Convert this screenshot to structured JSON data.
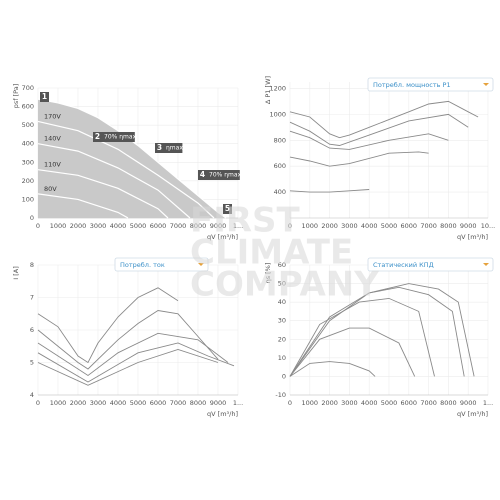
{
  "chart_data": [
    {
      "type": "area-line",
      "ylabel": "psf [Pa]",
      "xlabel": "qV [m³/h]",
      "xlim": [
        0,
        10000
      ],
      "xticks": [
        0,
        1000,
        2000,
        3000,
        4000,
        5000,
        6000,
        7000,
        8000,
        9000,
        {
          "value": 10000,
          "label": "1..."
        }
      ],
      "ylim": [
        0,
        700
      ],
      "yticks": [
        0,
        100,
        200,
        300,
        400,
        500,
        600,
        700
      ],
      "grid": true,
      "color": "#c9c9c9",
      "line_color": "#ffffff",
      "series": [
        {
          "x": [
            0,
            1000,
            2000,
            3000,
            4000,
            5000,
            6000,
            7000,
            8000,
            9000,
            9400
          ],
          "values": [
            640,
            620,
            590,
            540,
            470,
            390,
            300,
            210,
            120,
            30,
            0
          ]
        },
        {
          "name": "170V",
          "x": [
            0,
            2000,
            4000,
            6000,
            8000,
            8800
          ],
          "values": [
            520,
            470,
            370,
            230,
            80,
            0
          ]
        },
        {
          "name": "140V",
          "x": [
            0,
            2000,
            4000,
            6000,
            7600
          ],
          "values": [
            400,
            360,
            270,
            150,
            0
          ]
        },
        {
          "name": "110V",
          "x": [
            0,
            2000,
            4000,
            6000,
            6500
          ],
          "values": [
            260,
            230,
            160,
            50,
            0
          ]
        },
        {
          "name": "80V",
          "x": [
            0,
            2000,
            4000,
            4500
          ],
          "values": [
            130,
            100,
            30,
            0
          ]
        }
      ],
      "annotations": [
        {
          "marker": "1"
        },
        {
          "marker": "2",
          "text": "70% ηmax"
        },
        {
          "marker": "3",
          "text": "ηmax"
        },
        {
          "marker": "4",
          "text": "70% ηmax"
        },
        {
          "marker": "5"
        }
      ]
    },
    {
      "type": "line",
      "title": "Потребл. мощность P1",
      "ylabel": "Δ P1 [W]",
      "xlabel": "qV [m³/h]",
      "xlim": [
        0,
        10000
      ],
      "xticks": [
        0,
        1000,
        2000,
        3000,
        4000,
        5000,
        6000,
        7000,
        8000,
        9000,
        {
          "value": 10000,
          "label": "10..."
        }
      ],
      "ylim": [
        200,
        1250
      ],
      "yticks": [
        400,
        600,
        800,
        1000,
        1200
      ],
      "grid": true,
      "line_color": "#8a8a8a",
      "series": [
        {
          "x": [
            0,
            1000,
            2000,
            2500,
            3000,
            4000,
            5000,
            6000,
            7000,
            8000,
            9000,
            9500
          ],
          "values": [
            1020,
            980,
            850,
            820,
            840,
            900,
            960,
            1020,
            1080,
            1100,
            1020,
            980
          ]
        },
        {
          "x": [
            0,
            1000,
            2000,
            2500,
            4000,
            6000,
            8000,
            9000
          ],
          "values": [
            940,
            870,
            770,
            760,
            840,
            950,
            1000,
            900
          ]
        },
        {
          "x": [
            0,
            1000,
            2000,
            3000,
            5000,
            7000,
            8000
          ],
          "values": [
            870,
            820,
            740,
            730,
            800,
            850,
            800
          ]
        },
        {
          "x": [
            0,
            1000,
            2000,
            3000,
            5000,
            6500,
            7000
          ],
          "values": [
            670,
            640,
            600,
            620,
            700,
            710,
            700
          ]
        },
        {
          "x": [
            0,
            1000,
            2000,
            3000,
            4000
          ],
          "values": [
            410,
            400,
            400,
            410,
            420
          ]
        }
      ]
    },
    {
      "type": "line",
      "title": "Потребл. ток",
      "ylabel": "I [A]",
      "xlabel": "qV [m³/h]",
      "xlim": [
        0,
        10000
      ],
      "xticks": [
        0,
        1000,
        2000,
        3000,
        4000,
        5000,
        6000,
        7000,
        8000,
        9000,
        {
          "value": 10000,
          "label": "1..."
        }
      ],
      "ylim": [
        4,
        8
      ],
      "yticks": [
        4,
        5,
        6,
        7,
        8
      ],
      "grid": true,
      "line_color": "#8a8a8a",
      "series": [
        {
          "x": [
            0,
            1000,
            2000,
            2500,
            3000,
            4000,
            5000,
            6000,
            7000
          ],
          "values": [
            6.5,
            6.1,
            5.2,
            5.0,
            5.6,
            6.4,
            7.0,
            7.3,
            6.9
          ]
        },
        {
          "x": [
            0,
            2000,
            2500,
            4000,
            5000,
            6000,
            7000,
            8000,
            9000
          ],
          "values": [
            6.0,
            5.0,
            4.8,
            5.7,
            6.2,
            6.6,
            6.5,
            5.8,
            5.1
          ]
        },
        {
          "x": [
            0,
            2500,
            4000,
            6000,
            8000,
            9500
          ],
          "values": [
            5.6,
            4.6,
            5.3,
            5.9,
            5.7,
            5.0
          ]
        },
        {
          "x": [
            0,
            2500,
            5000,
            7000,
            8500,
            9800
          ],
          "values": [
            5.3,
            4.4,
            5.3,
            5.6,
            5.2,
            4.9
          ]
        },
        {
          "x": [
            0,
            2500,
            5000,
            7000,
            9000
          ],
          "values": [
            5.0,
            4.3,
            5.0,
            5.4,
            5.0
          ]
        }
      ]
    },
    {
      "type": "line",
      "title": "Статический КПД",
      "ylabel": "ηs [%]",
      "xlabel": "qV [m³/h]",
      "xlim": [
        0,
        10000
      ],
      "xticks": [
        0,
        1000,
        2000,
        3000,
        4000,
        5000,
        6000,
        7000,
        8000,
        9000,
        {
          "value": 10000,
          "label": "1..."
        }
      ],
      "ylim": [
        -10,
        60
      ],
      "yticks": [
        -10,
        0,
        10,
        20,
        30,
        40,
        50,
        60
      ],
      "grid": true,
      "line_color": "#8a8a8a",
      "series": [
        {
          "x": [
            0,
            2000,
            4000,
            6000,
            7500,
            8500,
            9300
          ],
          "values": [
            0,
            30,
            45,
            50,
            47,
            40,
            0
          ]
        },
        {
          "x": [
            0,
            2000,
            4000,
            5500,
            7000,
            8200,
            8800
          ],
          "values": [
            0,
            32,
            45,
            48,
            44,
            35,
            0
          ]
        },
        {
          "x": [
            0,
            1500,
            3500,
            5000,
            6500,
            7300
          ],
          "values": [
            0,
            28,
            40,
            42,
            35,
            0
          ]
        },
        {
          "x": [
            0,
            1500,
            3000,
            4000,
            5500,
            6300
          ],
          "values": [
            0,
            20,
            26,
            26,
            18,
            0
          ]
        },
        {
          "x": [
            0,
            1000,
            2000,
            3000,
            4000,
            4300
          ],
          "values": [
            0,
            7,
            8,
            7,
            3,
            0
          ]
        }
      ]
    }
  ],
  "watermark": [
    "FIRST",
    "CLIMATE",
    "COMPANY"
  ]
}
